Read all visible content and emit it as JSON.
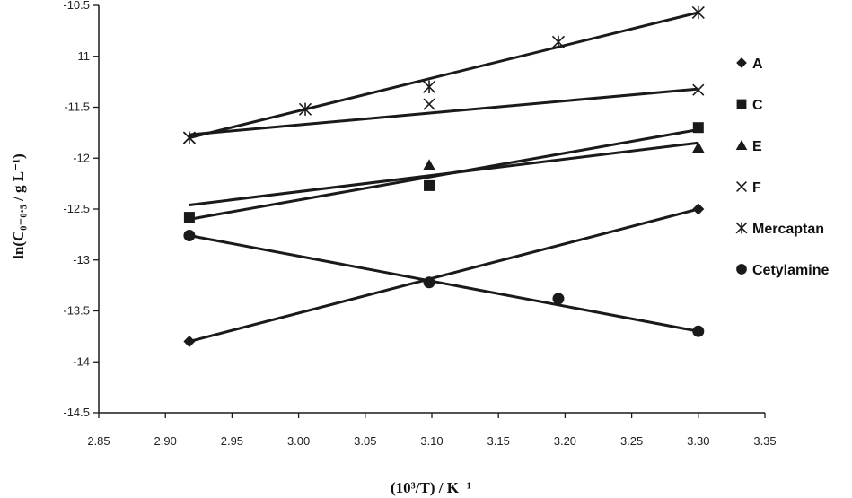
{
  "chart_data": {
    "type": "scatter",
    "xlabel": "(10³/T) / K⁻¹",
    "ylabel": "ln(C₀₋₀.₅ / g L⁻¹)",
    "xlim": [
      2.85,
      3.35
    ],
    "ylim": [
      -14.5,
      -10.5
    ],
    "x_ticks": [
      "2.85",
      "2.90",
      "2.95",
      "3.00",
      "3.05",
      "3.10",
      "3.15",
      "3.20",
      "3.25",
      "3.30",
      "3.35"
    ],
    "y_ticks": [
      "-10.5",
      "-11",
      "-11.5",
      "-12",
      "-12.5",
      "-13",
      "-13.5",
      "-14",
      "-14.5"
    ],
    "grid": false,
    "legend_position": "right",
    "series": [
      {
        "name": "A",
        "marker": "diamond",
        "points": [
          [
            2.918,
            -13.8
          ],
          [
            3.3,
            -12.5
          ]
        ],
        "fit": [
          [
            2.918,
            -13.8
          ],
          [
            3.3,
            -12.5
          ]
        ]
      },
      {
        "name": "C",
        "marker": "square",
        "points": [
          [
            2.918,
            -12.58
          ],
          [
            3.098,
            -12.27
          ],
          [
            3.3,
            -11.7
          ]
        ],
        "fit": [
          [
            2.918,
            -12.6
          ],
          [
            3.3,
            -11.72
          ]
        ]
      },
      {
        "name": "E",
        "marker": "triangle",
        "points": [
          [
            3.098,
            -12.07
          ],
          [
            3.3,
            -11.9
          ]
        ],
        "fit": [
          [
            2.918,
            -12.46
          ],
          [
            3.3,
            -11.85
          ]
        ]
      },
      {
        "name": "F",
        "marker": "x",
        "points": [
          [
            2.918,
            -11.8
          ],
          [
            3.098,
            -11.47
          ],
          [
            3.3,
            -11.33
          ]
        ],
        "fit": [
          [
            2.918,
            -11.77
          ],
          [
            3.3,
            -11.32
          ]
        ]
      },
      {
        "name": "Mercaptan",
        "marker": "asterisk",
        "points": [
          [
            2.918,
            -11.8
          ],
          [
            3.005,
            -11.52
          ],
          [
            3.098,
            -11.3
          ],
          [
            3.195,
            -10.86
          ],
          [
            3.3,
            -10.57
          ]
        ],
        "fit": [
          [
            2.918,
            -11.8
          ],
          [
            3.3,
            -10.57
          ]
        ]
      },
      {
        "name": "Cetylamine",
        "marker": "circle",
        "points": [
          [
            2.918,
            -12.76
          ],
          [
            3.098,
            -13.22
          ],
          [
            3.195,
            -13.38
          ],
          [
            3.3,
            -13.7
          ]
        ],
        "fit": [
          [
            2.918,
            -12.76
          ],
          [
            3.3,
            -13.7
          ]
        ]
      }
    ]
  }
}
